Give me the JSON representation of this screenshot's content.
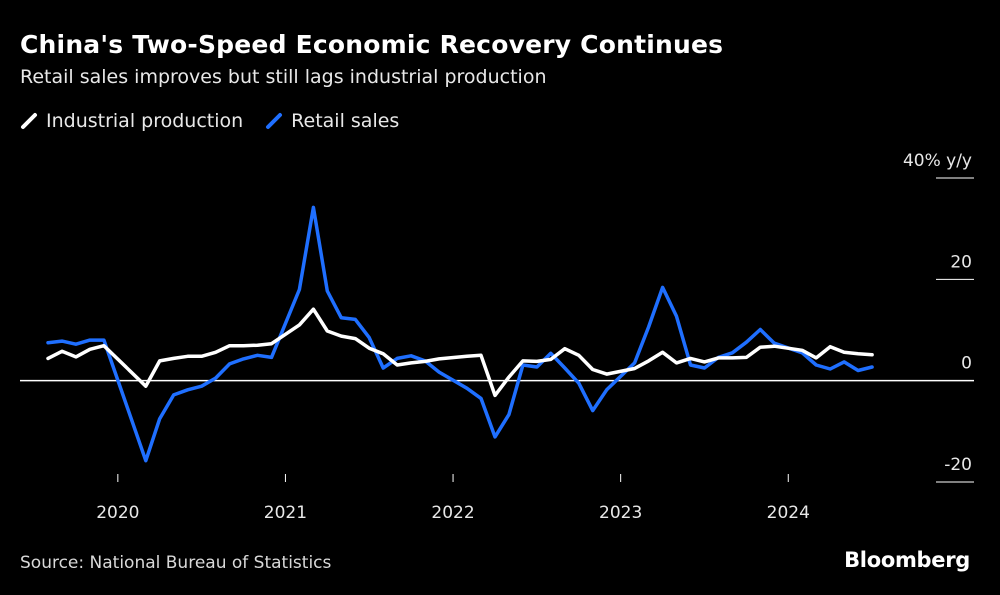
{
  "header": {
    "title": "China's Two-Speed Economic Recovery Continues",
    "subtitle": "Retail sales improves but still lags industrial production"
  },
  "footer": {
    "source": "Source: National Bureau of Statistics",
    "brand": "Bloomberg"
  },
  "colors": {
    "background": "#000000",
    "industrial": "#ffffff",
    "retail": "#1f6fff"
  },
  "chart_data": {
    "type": "line",
    "title": "China's Two-Speed Economic Recovery Continues",
    "subtitle": "Retail sales improves but still lags industrial production",
    "ylabel": "% y/y",
    "ylim": [
      -20,
      40
    ],
    "xlim": [
      "2019-08",
      "2024-09"
    ],
    "y_ticks": [
      {
        "value": 40,
        "label": "40% y/y"
      },
      {
        "value": 20,
        "label": "20"
      },
      {
        "value": 0,
        "label": "0"
      },
      {
        "value": -20,
        "label": "-20"
      }
    ],
    "x_ticks": [
      {
        "value": "2020-01",
        "label": "2020"
      },
      {
        "value": "2021-01",
        "label": "2021"
      },
      {
        "value": "2022-01",
        "label": "2022"
      },
      {
        "value": "2023-01",
        "label": "2023"
      },
      {
        "value": "2024-01",
        "label": "2024"
      }
    ],
    "legend_position": "top-left",
    "series": [
      {
        "name": "Industrial production",
        "color": "#ffffff",
        "points": [
          [
            "2019-08",
            4.4
          ],
          [
            "2019-09",
            5.8
          ],
          [
            "2019-10",
            4.7
          ],
          [
            "2019-11",
            6.2
          ],
          [
            "2019-12",
            6.9
          ],
          [
            "2020-03",
            -1.1
          ],
          [
            "2020-04",
            3.9
          ],
          [
            "2020-05",
            4.4
          ],
          [
            "2020-06",
            4.8
          ],
          [
            "2020-07",
            4.8
          ],
          [
            "2020-08",
            5.6
          ],
          [
            "2020-09",
            6.9
          ],
          [
            "2020-10",
            6.9
          ],
          [
            "2020-11",
            7.0
          ],
          [
            "2020-12",
            7.3
          ],
          [
            "2021-02",
            11.0
          ],
          [
            "2021-03",
            14.1
          ],
          [
            "2021-04",
            9.8
          ],
          [
            "2021-05",
            8.8
          ],
          [
            "2021-06",
            8.3
          ],
          [
            "2021-07",
            6.4
          ],
          [
            "2021-08",
            5.3
          ],
          [
            "2021-09",
            3.1
          ],
          [
            "2021-10",
            3.5
          ],
          [
            "2021-11",
            3.8
          ],
          [
            "2021-12",
            4.3
          ],
          [
            "2022-02",
            4.8
          ],
          [
            "2022-03",
            5.0
          ],
          [
            "2022-04",
            -2.9
          ],
          [
            "2022-05",
            0.7
          ],
          [
            "2022-06",
            3.9
          ],
          [
            "2022-07",
            3.8
          ],
          [
            "2022-08",
            4.2
          ],
          [
            "2022-09",
            6.3
          ],
          [
            "2022-10",
            5.0
          ],
          [
            "2022-11",
            2.2
          ],
          [
            "2022-12",
            1.3
          ],
          [
            "2023-02",
            2.4
          ],
          [
            "2023-03",
            3.9
          ],
          [
            "2023-04",
            5.6
          ],
          [
            "2023-05",
            3.5
          ],
          [
            "2023-06",
            4.4
          ],
          [
            "2023-07",
            3.7
          ],
          [
            "2023-08",
            4.5
          ],
          [
            "2023-09",
            4.5
          ],
          [
            "2023-10",
            4.6
          ],
          [
            "2023-11",
            6.6
          ],
          [
            "2023-12",
            6.8
          ],
          [
            "2024-02",
            6.0
          ],
          [
            "2024-03",
            4.5
          ],
          [
            "2024-04",
            6.7
          ],
          [
            "2024-05",
            5.6
          ],
          [
            "2024-06",
            5.3
          ],
          [
            "2024-07",
            5.1
          ]
        ]
      },
      {
        "name": "Retail sales",
        "color": "#1f6fff",
        "points": [
          [
            "2019-08",
            7.5
          ],
          [
            "2019-09",
            7.8
          ],
          [
            "2019-10",
            7.2
          ],
          [
            "2019-11",
            8.0
          ],
          [
            "2019-12",
            8.0
          ],
          [
            "2020-03",
            -15.8
          ],
          [
            "2020-04",
            -7.5
          ],
          [
            "2020-05",
            -2.8
          ],
          [
            "2020-06",
            -1.8
          ],
          [
            "2020-07",
            -1.1
          ],
          [
            "2020-08",
            0.5
          ],
          [
            "2020-09",
            3.3
          ],
          [
            "2020-10",
            4.3
          ],
          [
            "2020-11",
            5.0
          ],
          [
            "2020-12",
            4.6
          ],
          [
            "2021-02",
            18.0
          ],
          [
            "2021-03",
            34.2
          ],
          [
            "2021-04",
            17.7
          ],
          [
            "2021-05",
            12.4
          ],
          [
            "2021-06",
            12.1
          ],
          [
            "2021-07",
            8.5
          ],
          [
            "2021-08",
            2.5
          ],
          [
            "2021-09",
            4.4
          ],
          [
            "2021-10",
            4.9
          ],
          [
            "2021-11",
            3.9
          ],
          [
            "2021-12",
            1.7
          ],
          [
            "2022-02",
            -1.5
          ],
          [
            "2022-03",
            -3.5
          ],
          [
            "2022-04",
            -11.1
          ],
          [
            "2022-05",
            -6.7
          ],
          [
            "2022-06",
            3.1
          ],
          [
            "2022-07",
            2.7
          ],
          [
            "2022-08",
            5.4
          ],
          [
            "2022-09",
            2.5
          ],
          [
            "2022-10",
            -0.5
          ],
          [
            "2022-11",
            -5.9
          ],
          [
            "2022-12",
            -1.8
          ],
          [
            "2023-02",
            3.5
          ],
          [
            "2023-03",
            10.6
          ],
          [
            "2023-04",
            18.4
          ],
          [
            "2023-05",
            12.7
          ],
          [
            "2023-06",
            3.1
          ],
          [
            "2023-07",
            2.5
          ],
          [
            "2023-08",
            4.6
          ],
          [
            "2023-09",
            5.5
          ],
          [
            "2023-10",
            7.6
          ],
          [
            "2023-11",
            10.1
          ],
          [
            "2023-12",
            7.4
          ],
          [
            "2024-02",
            5.5
          ],
          [
            "2024-03",
            3.1
          ],
          [
            "2024-04",
            2.3
          ],
          [
            "2024-05",
            3.7
          ],
          [
            "2024-06",
            2.0
          ],
          [
            "2024-07",
            2.7
          ]
        ]
      }
    ]
  }
}
